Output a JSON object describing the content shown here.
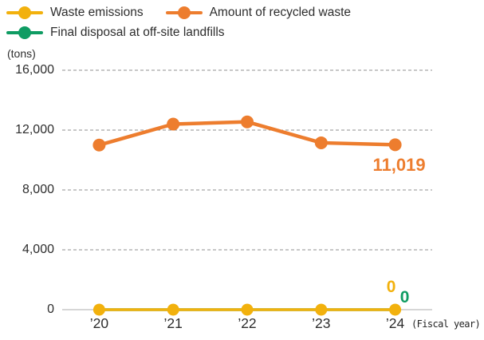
{
  "legend": {
    "items": [
      {
        "label": "Waste emissions",
        "color": "#f2b10d"
      },
      {
        "label": "Amount of recycled waste",
        "color": "#ed7d2e"
      },
      {
        "label": "Final disposal at off-site landfills",
        "color": "#0f9c63"
      }
    ]
  },
  "chart_data": {
    "type": "line",
    "title": "",
    "ylabel": "(tons)",
    "xlabel": "(Fiscal year)",
    "categories": [
      "’20",
      "’21",
      "’22",
      "’23",
      "’24"
    ],
    "series": [
      {
        "name": "Waste emissions",
        "color": "#f2b10d",
        "values": [
          0,
          0,
          0,
          0,
          0
        ]
      },
      {
        "name": "Amount of recycled waste",
        "color": "#ed7d2e",
        "values": [
          11000,
          12400,
          12550,
          11150,
          11019
        ]
      },
      {
        "name": "Final disposal at off-site landfills",
        "color": "#0f9c63",
        "values": [
          0,
          0,
          0,
          0,
          0
        ]
      }
    ],
    "ylim": [
      0,
      16000
    ],
    "y_ticks": [
      {
        "label": "16,000",
        "value": 16000
      },
      {
        "label": "12,000",
        "value": 12000
      },
      {
        "label": "8,000",
        "value": 8000
      },
      {
        "label": "4,000",
        "value": 4000
      },
      {
        "label": "0",
        "value": 0
      }
    ],
    "grid": "horizontal-dashed",
    "legend_position": "top-left",
    "annotations": [
      {
        "text": "11,019",
        "series": "Amount of recycled waste",
        "category": "’24"
      },
      {
        "text": "0",
        "series": "Waste emissions",
        "category": "’24"
      },
      {
        "text": "0",
        "series": "Final disposal at off-site landfills",
        "category": "’24"
      }
    ],
    "colors": {
      "grid_dashed": "#8f8f8f",
      "axis_zero": "#c9c9c9",
      "text": "#2d2d2d"
    }
  }
}
